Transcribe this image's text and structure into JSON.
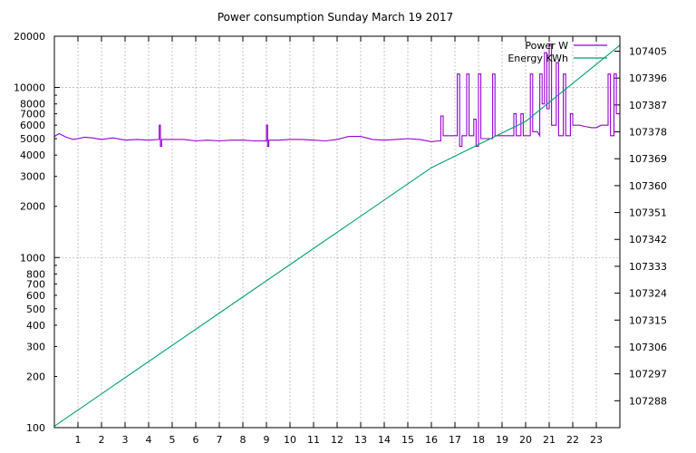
{
  "chart_data": {
    "type": "line",
    "title": "Power consumption Sunday March 19 2017",
    "x": {
      "label": "",
      "range": [
        0,
        24
      ],
      "ticks": [
        1,
        2,
        3,
        4,
        5,
        6,
        7,
        8,
        9,
        10,
        11,
        12,
        13,
        14,
        15,
        16,
        17,
        18,
        19,
        20,
        21,
        22,
        23
      ]
    },
    "y_left": {
      "label": "",
      "scale": "log",
      "range": [
        100,
        20000
      ],
      "major_ticks": [
        100,
        1000,
        10000
      ],
      "tick_labels": [
        {
          "v": 100,
          "t": "100"
        },
        {
          "v": 200,
          "t": "200"
        },
        {
          "v": 300,
          "t": "300"
        },
        {
          "v": 400,
          "t": "400"
        },
        {
          "v": 500,
          "t": "500"
        },
        {
          "v": 600,
          "t": "600"
        },
        {
          "v": 700,
          "t": "700"
        },
        {
          "v": 800,
          "t": "800"
        },
        {
          "v": 1000,
          "t": "1000"
        },
        {
          "v": 2000,
          "t": "2000"
        },
        {
          "v": 3000,
          "t": "3000"
        },
        {
          "v": 4000,
          "t": "4000"
        },
        {
          "v": 5000,
          "t": "5000"
        },
        {
          "v": 6000,
          "t": "6000"
        },
        {
          "v": 7000,
          "t": "7000"
        },
        {
          "v": 8000,
          "t": "8000"
        },
        {
          "v": 10000,
          "t": "10000"
        },
        {
          "v": 20000,
          "t": "20000"
        }
      ]
    },
    "y_right": {
      "label": "",
      "scale": "linear",
      "range": [
        107279,
        107410
      ],
      "ticks": [
        107288,
        107297,
        107306,
        107315,
        107324,
        107333,
        107342,
        107351,
        107360,
        107369,
        107378,
        107387,
        107396,
        107405
      ]
    },
    "grid": true,
    "legend_position": "top-right",
    "series": [
      {
        "name": "Power W",
        "color": "#9400d3",
        "axis": "left",
        "points": [
          [
            0,
            5150
          ],
          [
            0.2,
            5350
          ],
          [
            0.5,
            5100
          ],
          [
            0.8,
            4950
          ],
          [
            1.0,
            5000
          ],
          [
            1.3,
            5100
          ],
          [
            1.6,
            5050
          ],
          [
            2.0,
            4950
          ],
          [
            2.5,
            5050
          ],
          [
            3.0,
            4900
          ],
          [
            3.5,
            4950
          ],
          [
            4.0,
            4900
          ],
          [
            4.45,
            4950
          ],
          [
            4.45,
            6000
          ],
          [
            4.5,
            6000
          ],
          [
            4.5,
            4500
          ],
          [
            4.55,
            4500
          ],
          [
            4.55,
            4950
          ],
          [
            5.0,
            4950
          ],
          [
            5.5,
            4950
          ],
          [
            6.0,
            4850
          ],
          [
            6.5,
            4900
          ],
          [
            7.0,
            4850
          ],
          [
            7.5,
            4900
          ],
          [
            8.0,
            4900
          ],
          [
            8.5,
            4850
          ],
          [
            9.0,
            4850
          ],
          [
            9.0,
            6000
          ],
          [
            9.05,
            6000
          ],
          [
            9.05,
            4500
          ],
          [
            9.1,
            4500
          ],
          [
            9.1,
            4900
          ],
          [
            9.5,
            4900
          ],
          [
            10.0,
            4950
          ],
          [
            10.5,
            4950
          ],
          [
            11.0,
            4900
          ],
          [
            11.5,
            4850
          ],
          [
            12.0,
            4950
          ],
          [
            12.5,
            5150
          ],
          [
            13.0,
            5150
          ],
          [
            13.5,
            4950
          ],
          [
            14.0,
            4900
          ],
          [
            14.5,
            4950
          ],
          [
            15.0,
            5000
          ],
          [
            15.5,
            4950
          ],
          [
            16.0,
            4800
          ],
          [
            16.3,
            4850
          ],
          [
            16.4,
            4850
          ],
          [
            16.4,
            6800
          ],
          [
            16.5,
            6800
          ],
          [
            16.5,
            5200
          ],
          [
            17.0,
            5200
          ],
          [
            17.1,
            5200
          ],
          [
            17.1,
            12000
          ],
          [
            17.2,
            12000
          ],
          [
            17.2,
            4500
          ],
          [
            17.3,
            4500
          ],
          [
            17.3,
            5200
          ],
          [
            17.5,
            5200
          ],
          [
            17.5,
            12000
          ],
          [
            17.6,
            12000
          ],
          [
            17.6,
            5200
          ],
          [
            17.8,
            5200
          ],
          [
            17.8,
            6500
          ],
          [
            17.9,
            6500
          ],
          [
            17.9,
            4500
          ],
          [
            18.0,
            4500
          ],
          [
            18.0,
            12000
          ],
          [
            18.1,
            12000
          ],
          [
            18.1,
            5000
          ],
          [
            18.6,
            5000
          ],
          [
            18.6,
            12000
          ],
          [
            18.7,
            12000
          ],
          [
            18.7,
            5200
          ],
          [
            19.0,
            5200
          ],
          [
            19.5,
            5200
          ],
          [
            19.5,
            7000
          ],
          [
            19.6,
            7000
          ],
          [
            19.6,
            5200
          ],
          [
            19.8,
            5200
          ],
          [
            19.8,
            7000
          ],
          [
            19.9,
            7000
          ],
          [
            19.9,
            5200
          ],
          [
            20.2,
            5200
          ],
          [
            20.2,
            12000
          ],
          [
            20.3,
            12000
          ],
          [
            20.3,
            5500
          ],
          [
            20.5,
            5500
          ],
          [
            20.6,
            5200
          ],
          [
            20.6,
            12000
          ],
          [
            20.7,
            12000
          ],
          [
            20.7,
            8000
          ],
          [
            20.8,
            8000
          ],
          [
            20.8,
            16000
          ],
          [
            20.9,
            16000
          ],
          [
            20.9,
            7500
          ],
          [
            21.0,
            7500
          ],
          [
            21.0,
            18000
          ],
          [
            21.1,
            18000
          ],
          [
            21.1,
            6000
          ],
          [
            21.3,
            6000
          ],
          [
            21.3,
            14000
          ],
          [
            21.4,
            14000
          ],
          [
            21.4,
            5200
          ],
          [
            21.6,
            5200
          ],
          [
            21.6,
            12000
          ],
          [
            21.7,
            12000
          ],
          [
            21.7,
            5200
          ],
          [
            21.9,
            5200
          ],
          [
            21.9,
            7000
          ],
          [
            22.0,
            7000
          ],
          [
            22.0,
            6000
          ],
          [
            22.3,
            6000
          ],
          [
            22.5,
            5900
          ],
          [
            22.8,
            5800
          ],
          [
            23.0,
            5800
          ],
          [
            23.2,
            6000
          ],
          [
            23.5,
            6000
          ],
          [
            23.5,
            12000
          ],
          [
            23.6,
            12000
          ],
          [
            23.6,
            5200
          ],
          [
            23.75,
            5200
          ],
          [
            23.75,
            12000
          ],
          [
            23.85,
            12000
          ],
          [
            23.85,
            7000
          ],
          [
            24.0,
            7000
          ]
        ]
      },
      {
        "name": "Energy KWh",
        "color": "#009e73",
        "axis": "right",
        "points": [
          [
            0,
            107279.5
          ],
          [
            16.0,
            107366.0
          ],
          [
            20.0,
            107381.5
          ],
          [
            24.0,
            107407.0
          ]
        ]
      }
    ]
  }
}
